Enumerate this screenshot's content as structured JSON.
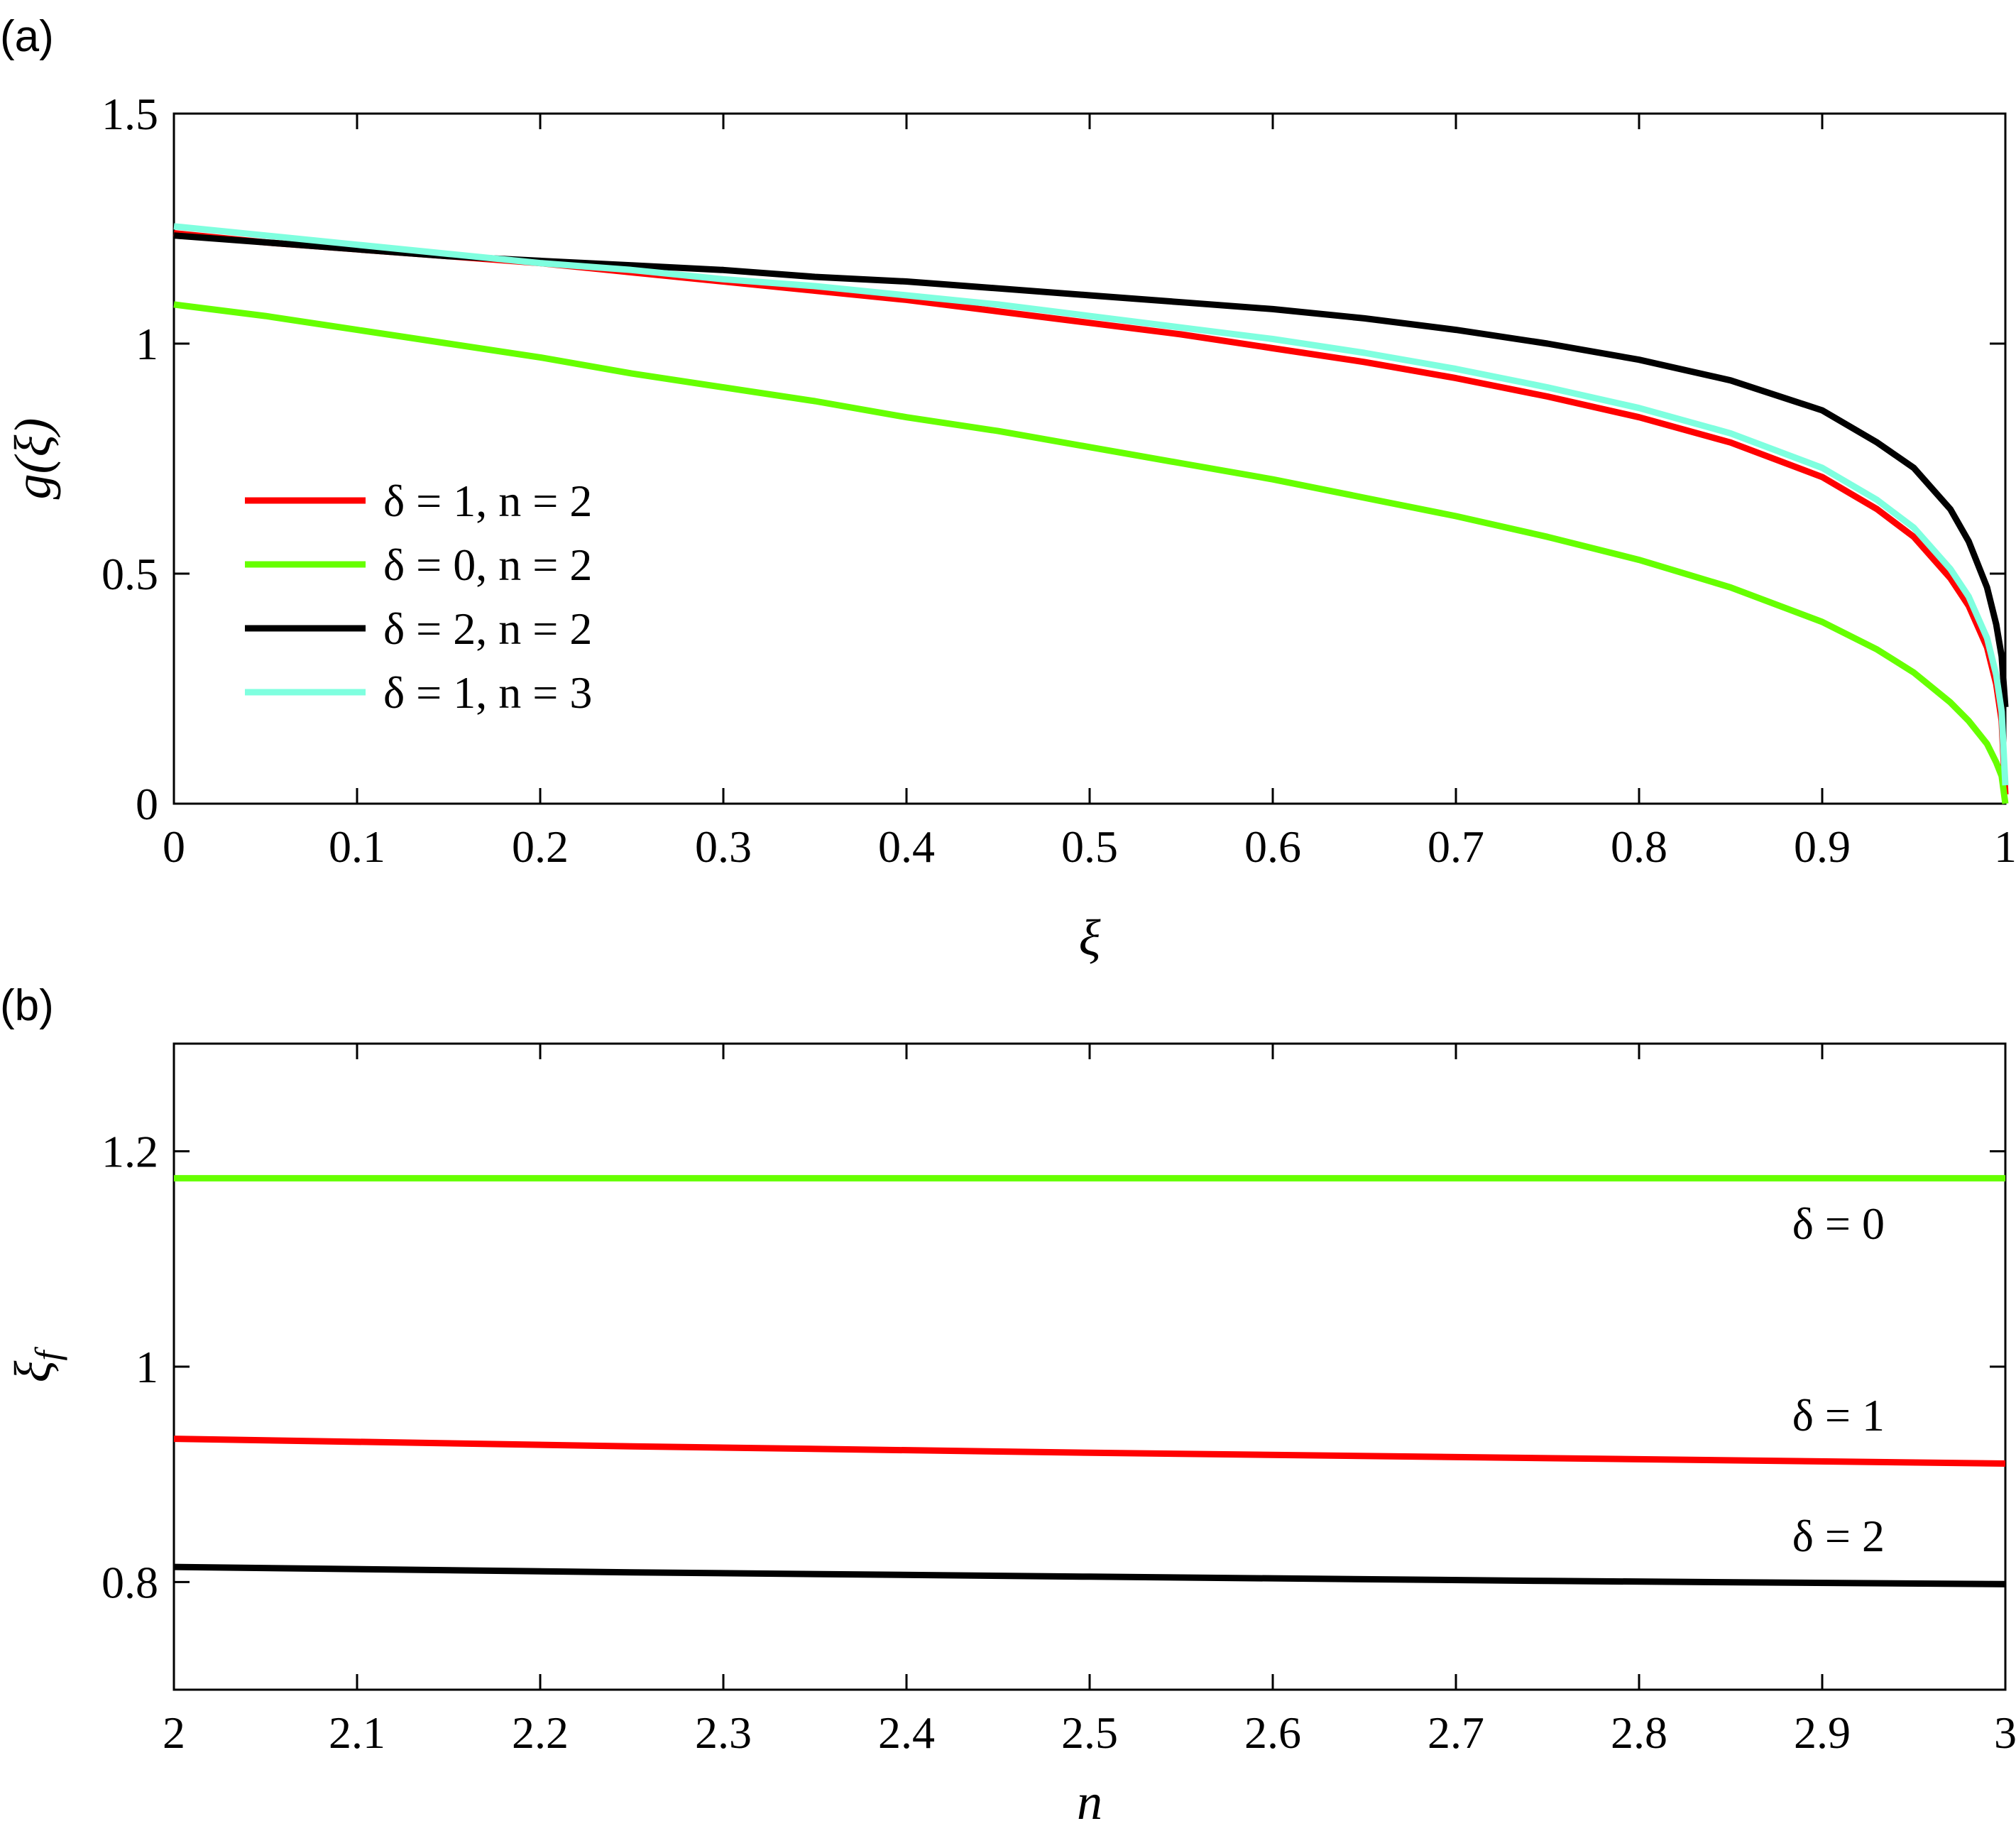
{
  "colors": {
    "red": "#ff0000",
    "green": "#66ff00",
    "black": "#000000",
    "cyan": "#7fffdf"
  },
  "panels": {
    "a": {
      "label": "(a)"
    },
    "b": {
      "label": "(b)"
    }
  },
  "chart_data": [
    {
      "type": "line",
      "panel_label": "(a)",
      "xlabel": "ξ",
      "ylabel": "g(ξ)",
      "xlim": [
        0,
        1
      ],
      "ylim": [
        0,
        1.5
      ],
      "xticks": [
        "0",
        "0.1",
        "0.2",
        "0.3",
        "0.4",
        "0.5",
        "0.6",
        "0.7",
        "0.8",
        "0.9",
        "1"
      ],
      "yticks": [
        "0",
        "0.5",
        "1",
        "1.5"
      ],
      "grid": false,
      "legend_position": "left-middle",
      "x": [
        0,
        0.05,
        0.1,
        0.15,
        0.2,
        0.25,
        0.3,
        0.35,
        0.4,
        0.45,
        0.5,
        0.55,
        0.6,
        0.65,
        0.7,
        0.75,
        0.8,
        0.85,
        0.9,
        0.93,
        0.95,
        0.97,
        0.98,
        0.99,
        0.995,
        0.998,
        1.0
      ],
      "series": [
        {
          "name": "δ = 1, n = 2",
          "color": "#ff0000",
          "values": [
            1.24,
            1.22,
            1.205,
            1.19,
            1.175,
            1.155,
            1.135,
            1.115,
            1.095,
            1.07,
            1.045,
            1.02,
            0.99,
            0.96,
            0.925,
            0.885,
            0.84,
            0.785,
            0.71,
            0.64,
            0.58,
            0.49,
            0.43,
            0.34,
            0.26,
            0.18,
            0.02
          ]
        },
        {
          "name": "δ = 0, n = 2",
          "color": "#66ff00",
          "values": [
            1.085,
            1.06,
            1.03,
            1.0,
            0.97,
            0.935,
            0.905,
            0.875,
            0.84,
            0.81,
            0.775,
            0.74,
            0.705,
            0.665,
            0.625,
            0.58,
            0.53,
            0.47,
            0.395,
            0.335,
            0.285,
            0.22,
            0.18,
            0.13,
            0.09,
            0.06,
            0.0
          ]
        },
        {
          "name": "δ = 2, n = 2",
          "color": "#000000",
          "values": [
            1.235,
            1.22,
            1.205,
            1.19,
            1.18,
            1.17,
            1.16,
            1.145,
            1.135,
            1.12,
            1.105,
            1.09,
            1.075,
            1.055,
            1.03,
            1.0,
            0.965,
            0.92,
            0.855,
            0.785,
            0.73,
            0.64,
            0.57,
            0.47,
            0.39,
            0.32,
            0.21
          ]
        },
        {
          "name": "δ = 1, n = 3",
          "color": "#7fffdf",
          "values": [
            1.255,
            1.235,
            1.215,
            1.195,
            1.175,
            1.16,
            1.14,
            1.125,
            1.105,
            1.085,
            1.06,
            1.035,
            1.01,
            0.98,
            0.945,
            0.905,
            0.86,
            0.805,
            0.73,
            0.66,
            0.6,
            0.51,
            0.45,
            0.36,
            0.28,
            0.2,
            0.04
          ]
        }
      ]
    },
    {
      "type": "line",
      "panel_label": "(b)",
      "xlabel": "n",
      "ylabel": "ξf",
      "xlim": [
        2,
        3
      ],
      "ylim": [
        0.7,
        1.3
      ],
      "xticks": [
        "2",
        "2.1",
        "2.2",
        "2.3",
        "2.4",
        "2.5",
        "2.6",
        "2.7",
        "2.8",
        "2.9",
        "3"
      ],
      "yticks": [
        "0.8",
        "1",
        "1.2"
      ],
      "grid": false,
      "x": [
        2,
        2.25,
        2.5,
        2.75,
        3
      ],
      "series": [
        {
          "label": "δ = 0",
          "color": "#66ff00",
          "values": [
            1.175,
            1.175,
            1.175,
            1.175,
            1.175
          ]
        },
        {
          "label": "δ = 1",
          "color": "#ff0000",
          "values": [
            0.933,
            0.926,
            0.92,
            0.915,
            0.91
          ]
        },
        {
          "label": "δ = 2",
          "color": "#000000",
          "values": [
            0.814,
            0.809,
            0.805,
            0.801,
            0.798
          ]
        }
      ]
    }
  ]
}
